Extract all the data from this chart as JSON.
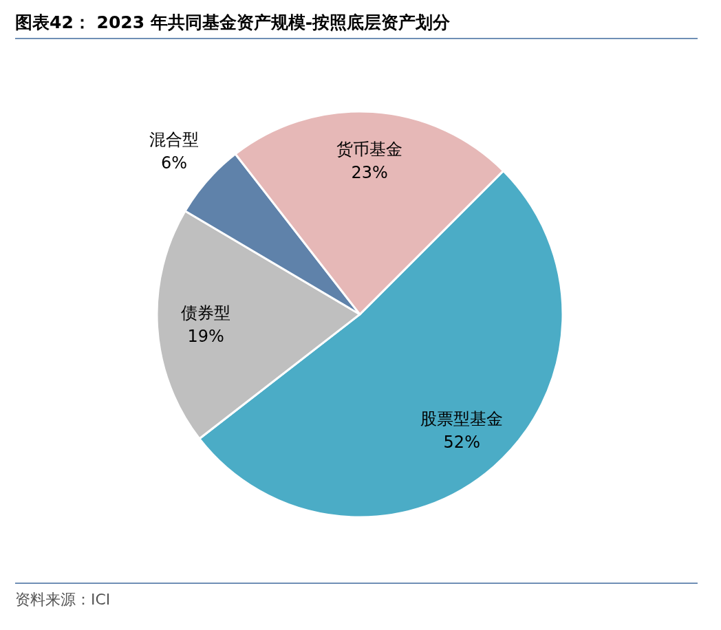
{
  "chart_data": {
    "type": "pie",
    "title": "图表42： 2023 年共同基金资产规模-按照底层资产划分",
    "categories": [
      "股票型基金",
      "债券型",
      "混合型",
      "货币基金"
    ],
    "values": [
      52,
      19,
      6,
      23
    ],
    "value_labels": [
      "52%",
      "19%",
      "6%",
      "23%"
    ],
    "colors": [
      "#4bacc6",
      "#bfbfbf",
      "#5f82aa",
      "#e6b8b7"
    ],
    "legend": false,
    "annotations": [
      "资料来源：ICI"
    ]
  }
}
